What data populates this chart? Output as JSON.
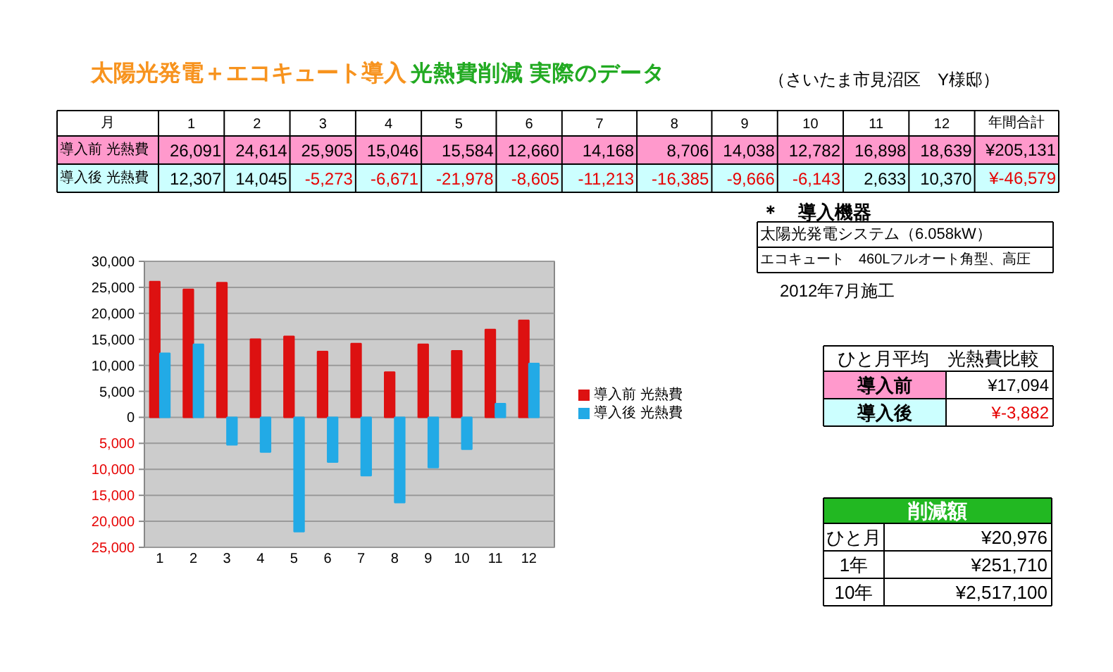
{
  "chart_data": [
    {
      "type": "heatmap",
      "title": "太陽光発電＋エコキュート導入",
      "subtitle": "光熱費削減 実際のデータ",
      "xlabel": "月",
      "categories": [
        "1",
        "2",
        "3",
        "4",
        "5",
        "6",
        "7",
        "8",
        "9",
        "10",
        "11",
        "12",
        "年間合計"
      ],
      "y_categories": [
        "導入前 光熱費",
        "導入後 光熱費"
      ],
      "cells": [
        [
          26091,
          24614,
          25905,
          15046,
          15584,
          12660,
          14168,
          8706,
          14038,
          12782,
          16898,
          18639,
          205131
        ],
        [
          12307,
          14045,
          -5273,
          -6671,
          -21978,
          -8605,
          -11213,
          -16385,
          -9666,
          -6143,
          2633,
          10370,
          -46579
        ]
      ],
      "cell_labels": [
        [
          "26,091",
          "24,614",
          "25,905",
          "15,046",
          "15,584",
          "12,660",
          "14,168",
          "8,706",
          "14,038",
          "12,782",
          "16,898",
          "18,639",
          "¥205,131"
        ],
        [
          "12,307",
          "14,045",
          "-5,273",
          "-6,671",
          "-21,978",
          "-8,605",
          "-11,213",
          "-16,385",
          "-9,666",
          "-6,143",
          "2,633",
          "10,370",
          "¥-46,579"
        ]
      ],
      "annotations": [
        "（さいたま市見沼区　Y様邸）"
      ]
    },
    {
      "type": "bar",
      "categories": [
        "1",
        "2",
        "3",
        "4",
        "5",
        "6",
        "7",
        "8",
        "9",
        "10",
        "11",
        "12"
      ],
      "series": [
        {
          "name": "導入前 光熱費",
          "color": "#dd1111",
          "values": [
            26091,
            24614,
            25905,
            15046,
            15584,
            12660,
            14168,
            8706,
            14038,
            12782,
            16898,
            18639
          ]
        },
        {
          "name": "導入後 光熱費",
          "color": "#22aae6",
          "values": [
            12307,
            14045,
            -5273,
            -6671,
            -21978,
            -8605,
            -11213,
            -16385,
            -9666,
            -6143,
            2633,
            10370
          ]
        }
      ],
      "ylim": [
        -25000,
        30000
      ],
      "yticks": [
        {
          "value": -25000,
          "label": "25,000"
        },
        {
          "value": -20000,
          "label": "20,000"
        },
        {
          "value": -15000,
          "label": "15,000"
        },
        {
          "value": -10000,
          "label": "10,000"
        },
        {
          "value": -5000,
          "label": "5,000"
        },
        0,
        {
          "value": 5000,
          "label": "5,000"
        },
        {
          "value": 10000,
          "label": "10,000"
        },
        {
          "value": 15000,
          "label": "15,000"
        },
        {
          "value": 20000,
          "label": "20,000"
        },
        {
          "value": 25000,
          "label": "25,000"
        },
        {
          "value": 30000,
          "label": "30,000"
        }
      ],
      "grid": "y",
      "legend": "right"
    },
    {
      "type": "other",
      "title": "＊　導入機器",
      "annotations": [
        "太陽光発電システム（6.058kW）",
        "エコキュート　460Lフルオート角型、高圧",
        "2012年7月施工"
      ]
    },
    {
      "type": "other",
      "title": "ひと月平均　光熱費比較",
      "annotations": [
        "導入前",
        "¥17,094",
        "導入後",
        "¥-3,882"
      ]
    },
    {
      "type": "other",
      "title": "削減額",
      "annotations": [
        "ひと月",
        "¥20,976",
        "1年",
        "¥251,710",
        "10年",
        "¥2,517,100"
      ]
    }
  ]
}
